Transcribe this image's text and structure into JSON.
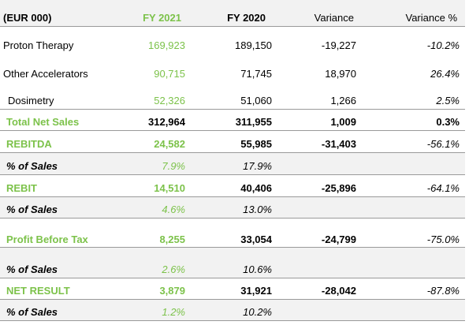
{
  "header": {
    "label": "(EUR 000)",
    "fy2021": "FY 2021",
    "fy2020": "FY 2020",
    "variance": "Variance",
    "variance_pct": "Variance %"
  },
  "rows": [
    {
      "label": "Proton Therapy",
      "fy2021": "169,923",
      "fy2020": "189,150",
      "variance": "-19,227",
      "variance_pct": "-10.2%"
    },
    {
      "label": "Other Accelerators",
      "fy2021": "90,715",
      "fy2020": "71,745",
      "variance": "18,970",
      "variance_pct": "26.4%"
    },
    {
      "label": "Dosimetry",
      "fy2021": "52,326",
      "fy2020": "51,060",
      "variance": "1,266",
      "variance_pct": "2.5%"
    },
    {
      "label": "Total Net Sales",
      "fy2021": "312,964",
      "fy2020": "311,955",
      "variance": "1,009",
      "variance_pct": "0.3%"
    },
    {
      "label": "REBITDA",
      "fy2021": "24,582",
      "fy2020": "55,985",
      "variance": "-31,403",
      "variance_pct": "-56.1%"
    },
    {
      "label": "% of Sales",
      "fy2021": "7.9%",
      "fy2020": "17.9%",
      "variance": "",
      "variance_pct": ""
    },
    {
      "label": "REBIT",
      "fy2021": "14,510",
      "fy2020": "40,406",
      "variance": "-25,896",
      "variance_pct": "-64.1%"
    },
    {
      "label": "% of Sales",
      "fy2021": "4.6%",
      "fy2020": "13.0%",
      "variance": "",
      "variance_pct": ""
    },
    {
      "label": "Profit Before Tax",
      "fy2021": "8,255",
      "fy2020": "33,054",
      "variance": "-24,799",
      "variance_pct": "-75.0%"
    },
    {
      "label": "% of Sales",
      "fy2021": "2.6%",
      "fy2020": "10.6%",
      "variance": "",
      "variance_pct": ""
    },
    {
      "label": "NET RESULT",
      "fy2021": "3,879",
      "fy2020": "31,921",
      "variance": "-28,042",
      "variance_pct": "-87.8%"
    },
    {
      "label": "% of Sales",
      "fy2021": "1.2%",
      "fy2020": "10.2%",
      "variance": "",
      "variance_pct": ""
    }
  ],
  "colors": {
    "accent_green": "#7cc24a",
    "row_shade": "#f2f2f2",
    "rule": "#9a9a9a"
  }
}
